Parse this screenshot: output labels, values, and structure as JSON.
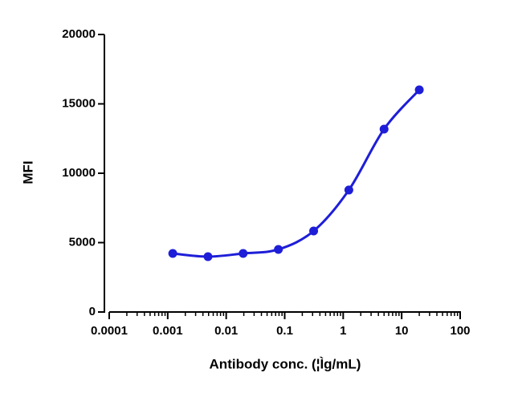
{
  "chart_data": {
    "type": "scatter",
    "x_label": "Antibody conc. (¦Ìg/mL)",
    "y_label": "MFI",
    "xscale": "log",
    "xlim": [
      0.0001,
      100
    ],
    "xticks": [
      0.0001,
      0.001,
      0.01,
      0.1,
      1,
      10,
      100
    ],
    "ylim": [
      0,
      20000
    ],
    "yticks": [
      0,
      5000,
      10000,
      15000,
      20000
    ],
    "series": [
      {
        "color": "#1e1ed8",
        "x": [
          0.00122,
          0.00488,
          0.0195,
          0.078,
          0.3125,
          1.25,
          5,
          20
        ],
        "values": [
          4220,
          3990,
          4220,
          4510,
          5840,
          8790,
          13180,
          16010
        ]
      }
    ]
  }
}
